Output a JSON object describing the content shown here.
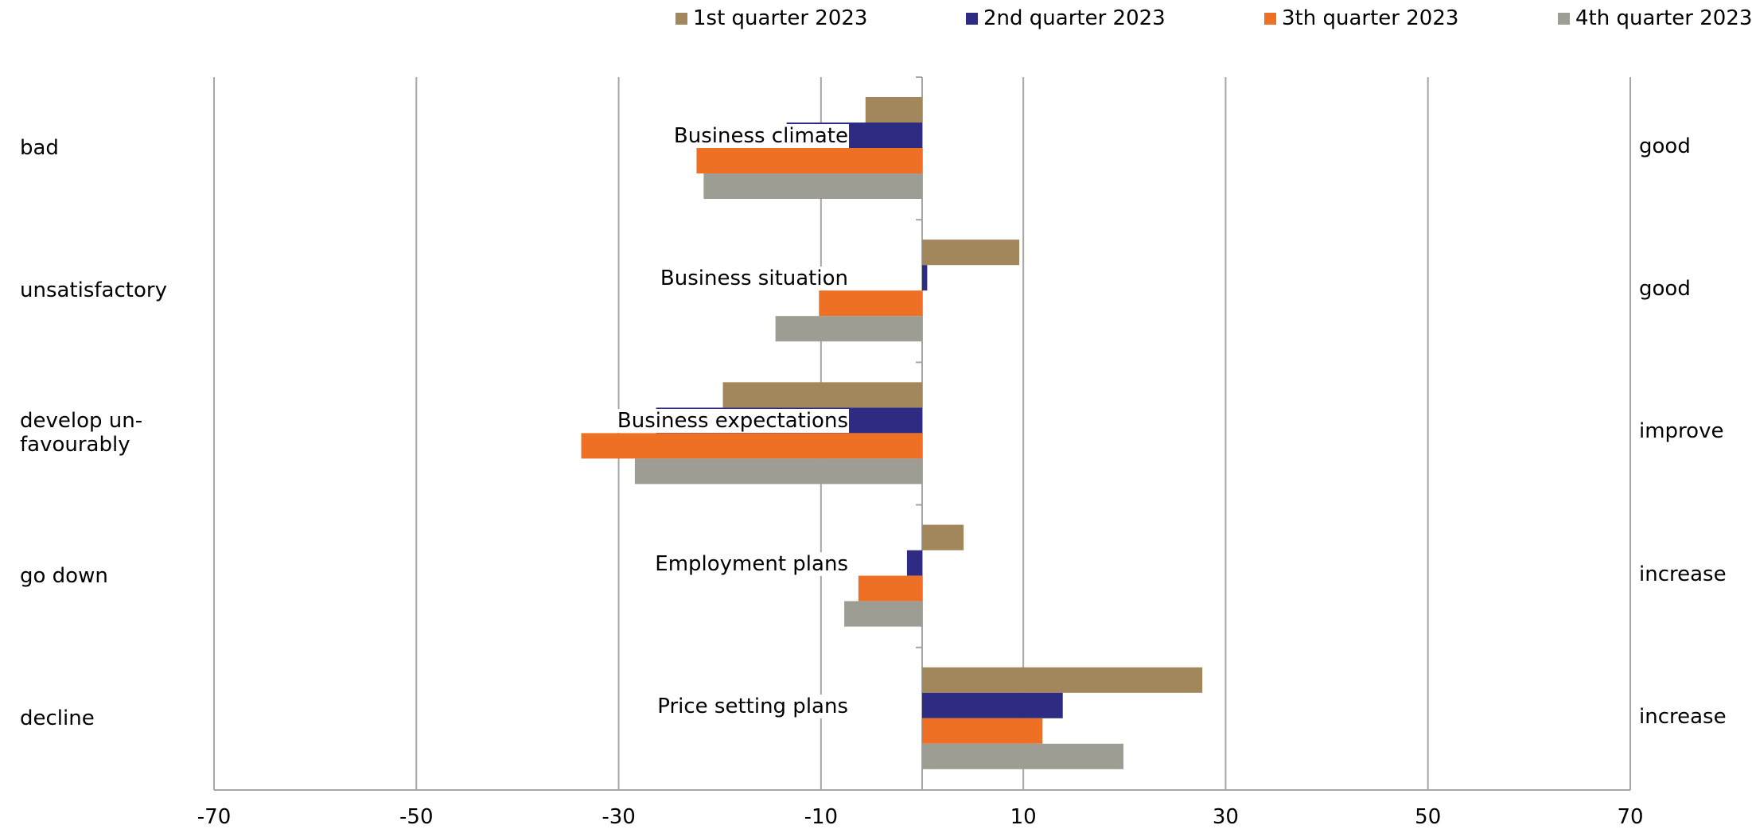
{
  "chart_data": {
    "type": "bar",
    "orientation": "horizontal",
    "categories": [
      "Business climate",
      "Business situation",
      "Business expectations",
      "Employment plans",
      "Price setting plans"
    ],
    "left_labels": [
      "bad",
      "unsatisfactory",
      "develop un-\nfavourably",
      "go down",
      "decline"
    ],
    "right_labels": [
      "good",
      "good",
      "improve",
      "increase",
      "increase"
    ],
    "series": [
      {
        "name": "1st quarter 2023",
        "color": "#a3875c",
        "values": [
          -5.6,
          9.6,
          -19.7,
          4.1,
          27.7
        ]
      },
      {
        "name": "2nd quarter 2023",
        "color": "#2e2b82",
        "values": [
          -13.4,
          0.5,
          -26.3,
          -1.5,
          13.9
        ]
      },
      {
        "name": "3th quarter 2023",
        "color": "#ee7024",
        "values": [
          -22.3,
          -10.2,
          -33.7,
          -6.3,
          11.9
        ]
      },
      {
        "name": "4th quarter 2023",
        "color": "#9d9d94",
        "values": [
          -21.6,
          -14.5,
          -28.4,
          -7.7,
          19.9
        ]
      }
    ],
    "xlim": [
      -70,
      70
    ],
    "xticks": [
      "-70",
      "-50",
      "-30",
      "-10",
      "10",
      "30",
      "50",
      "70"
    ],
    "grid": true,
    "legend_position": "top"
  }
}
